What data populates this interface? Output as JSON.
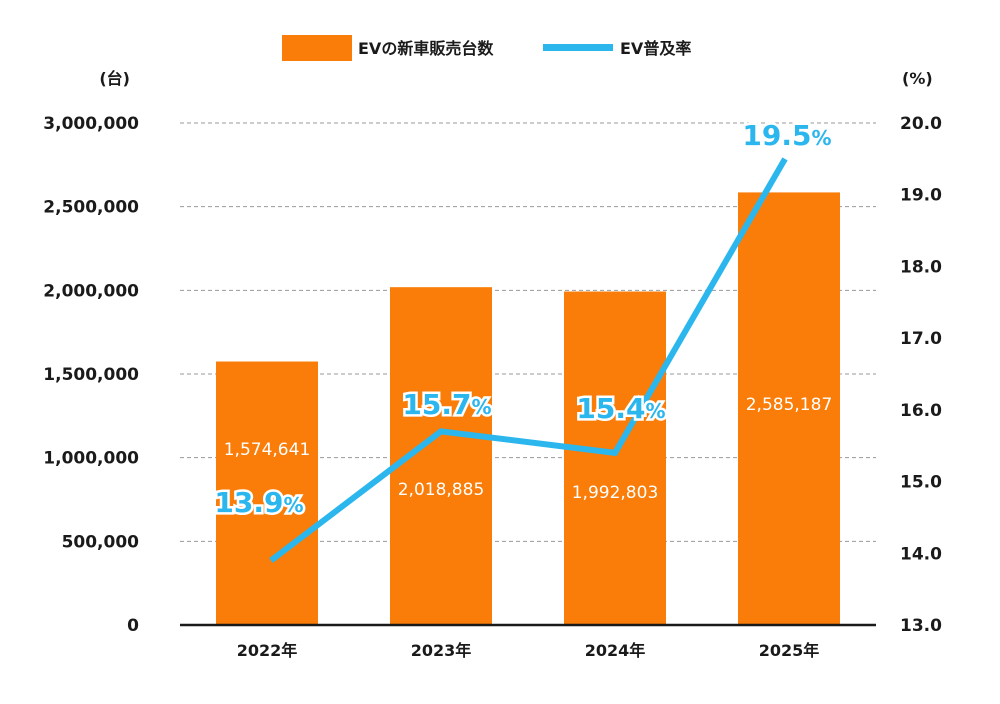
{
  "chart_data": {
    "type": "bar",
    "categories": [
      "2022年",
      "2023年",
      "2024年",
      "2025年"
    ],
    "series": [
      {
        "name": "EVの新車販売台数",
        "type": "bar",
        "axis": "left",
        "color": "#f97d08",
        "values": [
          1574641,
          2018885,
          1992803,
          2585187
        ],
        "labels": [
          "1,574,641",
          "2,018,885",
          "1,992,803",
          "2,585,187"
        ]
      },
      {
        "name": "EV普及率",
        "type": "line",
        "axis": "right",
        "color": "#2bb6ee",
        "values": [
          13.9,
          15.7,
          15.4,
          19.5
        ],
        "labels": [
          "13.9",
          "15.7",
          "15.4",
          "19.5"
        ],
        "unit_suffix": "%"
      }
    ],
    "y_left": {
      "unit": "(台)",
      "range": [
        0,
        3000000
      ],
      "ticks": [
        0,
        500000,
        1000000,
        1500000,
        2000000,
        2500000,
        3000000
      ],
      "tick_labels": [
        "0",
        "500,000",
        "1,000,000",
        "1,500,000",
        "2,000,000",
        "2,500,000",
        "3,000,000"
      ]
    },
    "y_right": {
      "unit": "(%)",
      "range": [
        13.0,
        20.0
      ],
      "ticks": [
        13,
        14,
        15,
        16,
        17,
        18,
        19,
        20
      ],
      "tick_labels": [
        "13.0",
        "14.0",
        "15.0",
        "16.0",
        "17.0",
        "18.0",
        "19.0",
        "20.0"
      ]
    },
    "grid": "horizontal dashed",
    "legend": "top-center"
  }
}
